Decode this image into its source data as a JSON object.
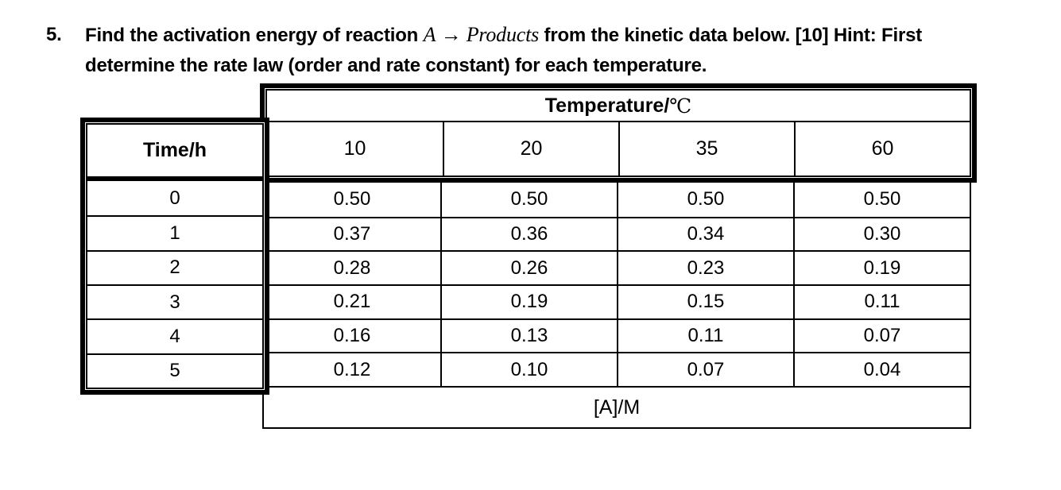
{
  "question": {
    "number": "5.",
    "line1_before_math": "Find the activation energy of reaction",
    "math_reactant": "A",
    "math_arrow": "→",
    "math_product": "Products",
    "line1_after_math": "from the kinetic data below. [10] Hint: First",
    "line2": "determine the rate law (order and rate constant) for each temperature."
  },
  "table": {
    "corner_header": "Time/h",
    "temp_header_label": "Temperature/",
    "temp_header_unit": "℃",
    "temp_columns": [
      "10",
      "20",
      "35",
      "60"
    ],
    "time_rows": [
      "0",
      "1",
      "2",
      "3",
      "4",
      "5"
    ],
    "data": [
      [
        "0.50",
        "0.50",
        "0.50",
        "0.50"
      ],
      [
        "0.37",
        "0.36",
        "0.34",
        "0.30"
      ],
      [
        "0.28",
        "0.26",
        "0.23",
        "0.19"
      ],
      [
        "0.21",
        "0.19",
        "0.15",
        "0.11"
      ],
      [
        "0.16",
        "0.13",
        "0.11",
        "0.07"
      ],
      [
        "0.12",
        "0.10",
        "0.07",
        "0.04"
      ]
    ],
    "footer": "[A]/M"
  },
  "colors": {
    "text": "#000000",
    "background": "#ffffff",
    "border": "#000000"
  }
}
